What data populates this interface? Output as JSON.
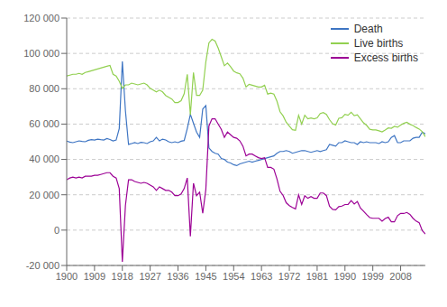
{
  "chart_data": {
    "type": "line",
    "x": [
      1900,
      1901,
      1902,
      1903,
      1904,
      1905,
      1906,
      1907,
      1908,
      1909,
      1910,
      1911,
      1912,
      1913,
      1914,
      1915,
      1916,
      1917,
      1918,
      1919,
      1920,
      1921,
      1922,
      1923,
      1924,
      1925,
      1926,
      1927,
      1928,
      1929,
      1930,
      1931,
      1932,
      1933,
      1934,
      1935,
      1936,
      1937,
      1938,
      1939,
      1940,
      1941,
      1942,
      1943,
      1944,
      1945,
      1946,
      1947,
      1948,
      1949,
      1950,
      1951,
      1952,
      1953,
      1954,
      1955,
      1956,
      1957,
      1958,
      1959,
      1960,
      1961,
      1962,
      1963,
      1964,
      1965,
      1966,
      1967,
      1968,
      1969,
      1970,
      1971,
      1972,
      1973,
      1974,
      1975,
      1976,
      1977,
      1978,
      1979,
      1980,
      1981,
      1982,
      1983,
      1984,
      1985,
      1986,
      1987,
      1988,
      1989,
      1990,
      1991,
      1992,
      1993,
      1994,
      1995,
      1996,
      1997,
      1998,
      1999,
      2000,
      2001,
      2002,
      2003,
      2004,
      2005,
      2006,
      2007,
      2008,
      2009,
      2010,
      2011,
      2012,
      2013,
      2014,
      2015,
      2016
    ],
    "series": [
      {
        "name": "Death",
        "color": "#3e75c3",
        "values": [
          50400,
          49800,
          49500,
          50000,
          50500,
          50200,
          50000,
          50800,
          51200,
          51000,
          51500,
          51200,
          51000,
          51800,
          51300,
          50500,
          51000,
          57500,
          95500,
          67500,
          48500,
          49000,
          49500,
          49000,
          49700,
          49500,
          49000,
          50000,
          50500,
          52500,
          50500,
          51500,
          51000,
          50000,
          49500,
          50000,
          49500,
          50300,
          50700,
          57500,
          65500,
          60500,
          55500,
          52500,
          68500,
          70500,
          46500,
          44500,
          43500,
          43000,
          40500,
          40000,
          38500,
          38000,
          37000,
          36500,
          37500,
          38000,
          38500,
          39000,
          38500,
          39000,
          39500,
          40000,
          40500,
          41000,
          41500,
          42000,
          43500,
          44500,
          44500,
          45000,
          44500,
          43500,
          44000,
          44500,
          45000,
          45000,
          44500,
          44000,
          44500,
          45000,
          44500,
          45000,
          45500,
          48500,
          48000,
          47500,
          49500,
          49500,
          50500,
          50000,
          49500,
          49500,
          48500,
          50000,
          49500,
          50000,
          49500,
          49500,
          49500,
          49000,
          50000,
          49500,
          50000,
          52500,
          53500,
          49500,
          49500,
          50500,
          50500,
          50500,
          52000,
          52500,
          52500,
          55500,
          54500
        ]
      },
      {
        "name": "Live births",
        "color": "#92d050",
        "values": [
          87200,
          87700,
          88200,
          88200,
          88700,
          88200,
          89200,
          89700,
          90200,
          90700,
          91200,
          91700,
          92200,
          92700,
          93200,
          88200,
          87200,
          84200,
          80200,
          82200,
          82200,
          83200,
          82700,
          82200,
          82700,
          83200,
          82200,
          80200,
          79200,
          78200,
          79200,
          78200,
          76200,
          75200,
          74200,
          72200,
          72200,
          73200,
          77200,
          88200,
          65200,
          89200,
          76200,
          76200,
          79200,
          95200,
          106000,
          108000,
          107000,
          103000,
          98000,
          93000,
          94500,
          92500,
          90000,
          89000,
          88500,
          86000,
          81000,
          82500,
          82000,
          81500,
          81000,
          81000,
          82000,
          77000,
          77500,
          77000,
          73000,
          67000,
          64600,
          61000,
          58900,
          56800,
          56500,
          65000,
          60000,
          65000,
          63000,
          63500,
          63000,
          63500,
          66000,
          66500,
          65500,
          62500,
          60200,
          59500,
          63300,
          63600,
          65500,
          65000,
          66700,
          64800,
          65200,
          63000,
          60700,
          59300,
          57100,
          56700,
          56700,
          56200,
          55600,
          56600,
          57800,
          57600,
          58700,
          58200,
          59500,
          60400,
          61000,
          59900,
          59200,
          58100,
          57200,
          55700,
          52800
        ]
      },
      {
        "name": "Excess births",
        "color": "#9c0095",
        "values": [
          28500,
          29500,
          30000,
          29500,
          30000,
          29500,
          30500,
          30500,
          30500,
          31000,
          31000,
          31500,
          32000,
          32500,
          32500,
          30500,
          29500,
          23500,
          -18000,
          14000,
          28500,
          28500,
          27500,
          27000,
          26500,
          27000,
          26500,
          25500,
          24500,
          22500,
          24500,
          23500,
          22500,
          22500,
          21500,
          19500,
          19500,
          20500,
          23500,
          29500,
          -3500,
          26500,
          19500,
          21500,
          9500,
          23000,
          59000,
          63000,
          63000,
          60000,
          57000,
          52500,
          55500,
          54000,
          52500,
          52000,
          50500,
          47500,
          42000,
          43000,
          43000,
          42000,
          41000,
          40500,
          41000,
          35500,
          35500,
          34500,
          29000,
          22000,
          19600,
          15500,
          13900,
          12800,
          12000,
          20000,
          14500,
          19500,
          18000,
          19000,
          18000,
          18000,
          21000,
          21000,
          19500,
          13500,
          11700,
          11500,
          13300,
          13600,
          14500,
          14500,
          16700,
          14800,
          16200,
          12500,
          10700,
          8800,
          7100,
          6700,
          6700,
          6700,
          5100,
          6600,
          7300,
          4700,
          4700,
          8200,
          9500,
          9400,
          10000,
          8900,
          6700,
          5100,
          4200,
          -300,
          -2200
        ]
      }
    ],
    "xlim": [
      1900,
      2016
    ],
    "xticks": [
      1900,
      1909,
      1918,
      1927,
      1936,
      1945,
      1954,
      1963,
      1972,
      1981,
      1990,
      1999,
      2008
    ],
    "ylim": [
      -20000,
      120000
    ],
    "yticks": [
      {
        "value": -20000,
        "label": "-20 000"
      },
      0,
      {
        "value": 20000,
        "label": "20 000"
      },
      {
        "value": 40000,
        "label": "40 000"
      },
      {
        "value": 60000,
        "label": "60 000"
      },
      {
        "value": 80000,
        "label": "80 000"
      },
      {
        "value": 100000,
        "label": "100 000"
      },
      {
        "value": 120000,
        "label": "120 000"
      }
    ],
    "grid": true,
    "legend": "top-right"
  }
}
